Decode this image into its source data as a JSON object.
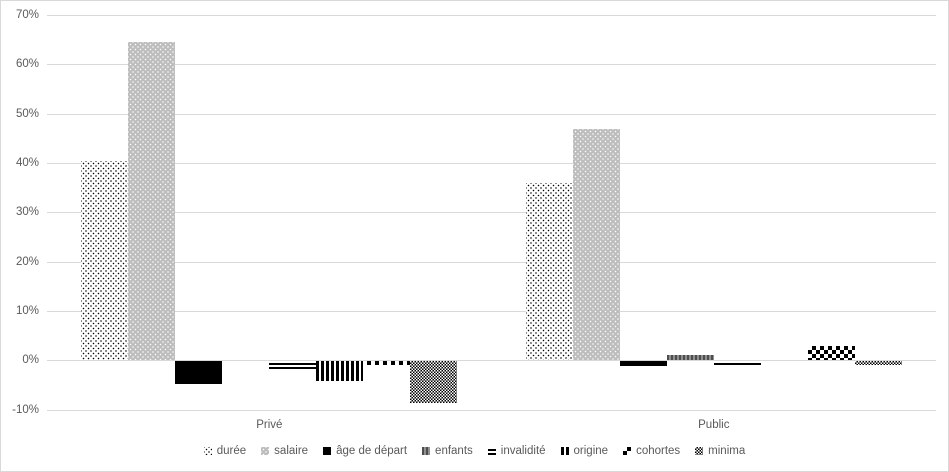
{
  "chart_data": {
    "type": "bar",
    "categories": [
      "Privé",
      "Public"
    ],
    "series": [
      {
        "name": "durée",
        "pattern": "dots-sparse-black",
        "values": [
          40.5,
          36
        ]
      },
      {
        "name": "salaire",
        "pattern": "gray-with-white-dots",
        "values": [
          64.5,
          47
        ]
      },
      {
        "name": "âge de départ",
        "pattern": "solid-black",
        "values": [
          -4.5,
          -1
        ]
      },
      {
        "name": "enfants",
        "pattern": "dark-gray-vertical-stripes",
        "values": [
          0,
          1
        ]
      },
      {
        "name": "invalidité",
        "pattern": "horizontal-lines",
        "values": [
          -2,
          -1
        ]
      },
      {
        "name": "origine",
        "pattern": "vertical-lines",
        "values": [
          -4,
          0
        ]
      },
      {
        "name": "cohortes",
        "pattern": "checkerboard-large",
        "values": [
          -0.7,
          3
        ]
      },
      {
        "name": "minima",
        "pattern": "checkerboard-fine",
        "values": [
          -8.5,
          -0.7
        ]
      }
    ],
    "yticks": {
      "values": [
        70,
        60,
        50,
        40,
        30,
        20,
        10,
        0,
        -10
      ],
      "labels": [
        "70%",
        "60%",
        "50%",
        "40%",
        "30%",
        "20%",
        "10%",
        "0%",
        "-10%"
      ]
    },
    "ylim": [
      -10,
      70
    ],
    "grid": true,
    "legend_position": "bottom",
    "colors": {
      "text": "#595959",
      "gridline": "#D9D9D9",
      "frame_border": "#D9D9D9",
      "background": "#FFFFFF",
      "salaire_fill": "#BDBDBD"
    }
  }
}
